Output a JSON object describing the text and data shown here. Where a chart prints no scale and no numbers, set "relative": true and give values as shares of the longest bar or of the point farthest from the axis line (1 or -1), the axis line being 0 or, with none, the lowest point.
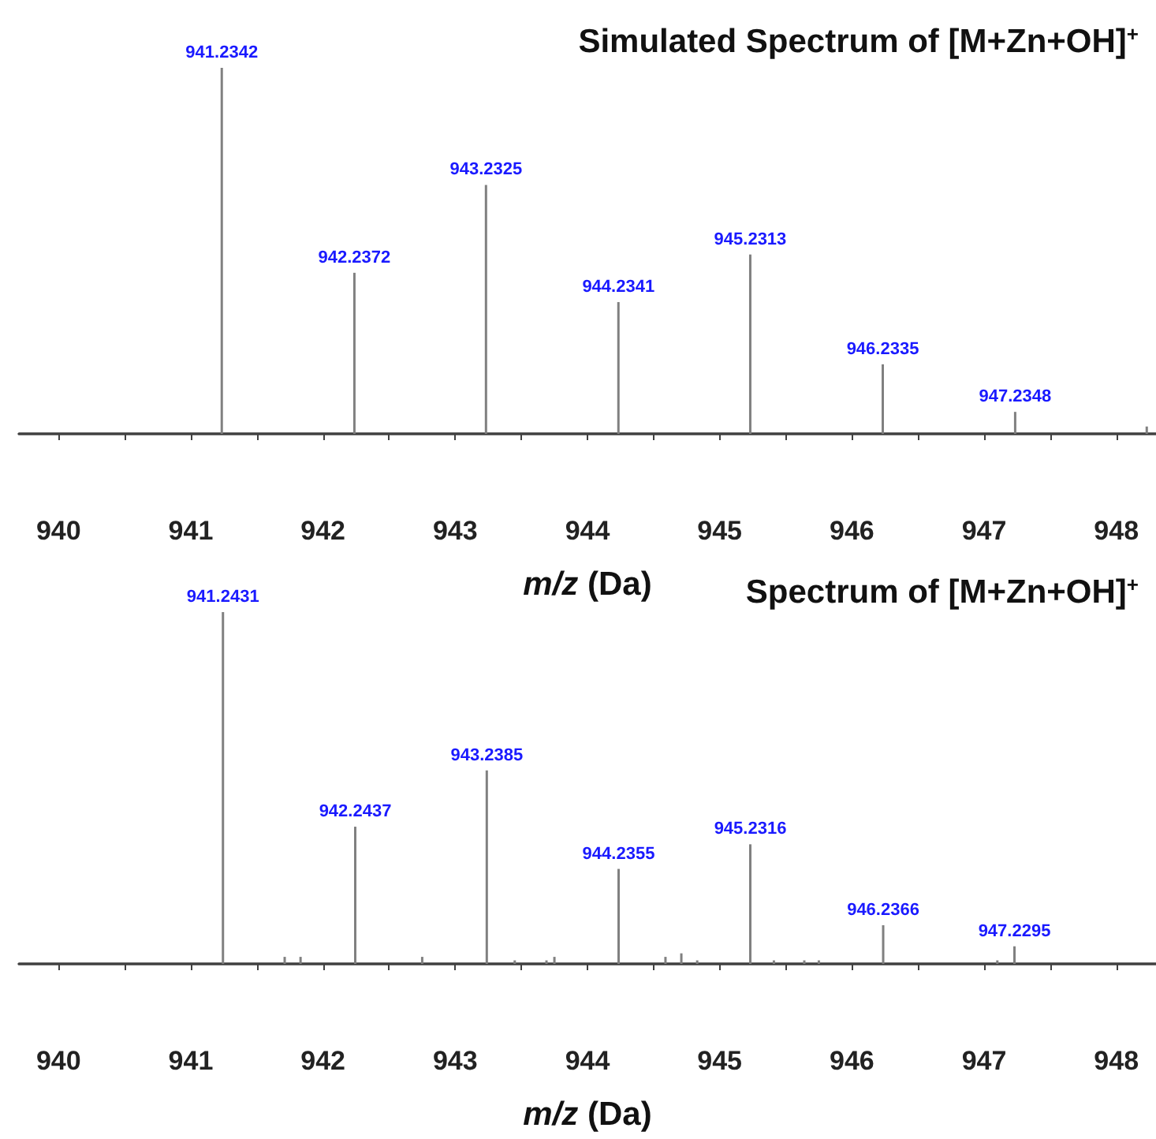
{
  "chart_data": [
    {
      "type": "bar",
      "title": "Simulated Spectrum of [M+Zn+OH]$^{+}$",
      "xlabel": "m/z (Da)",
      "relative": true,
      "x": [
        941.2342,
        942.2372,
        943.2325,
        944.2341,
        945.2313,
        946.2335,
        947.2348,
        948.23
      ],
      "values": [
        1,
        0.44,
        0.68,
        0.36,
        0.49,
        0.19,
        0.06,
        0.02
      ],
      "annotations": [
        {
          "text": "941.2342",
          "x": 941.2342,
          "y": 1
        },
        {
          "text": "942.2372",
          "x": 942.2372,
          "y": 0.44
        },
        {
          "text": "943.2325",
          "x": 943.2325,
          "y": 0.68
        },
        {
          "text": "944.2341",
          "x": 944.2341,
          "y": 0.36
        },
        {
          "text": "945.2313",
          "x": 945.2313,
          "y": 0.49
        },
        {
          "text": "946.2335",
          "x": 946.2335,
          "y": 0.19
        },
        {
          "text": "947.2348",
          "x": 947.2348,
          "y": 0.06
        }
      ],
      "color": "#808080",
      "xlim": [
        939.7,
        948.3
      ],
      "xticks": [
        940,
        {
          "value": 940.5,
          "label": null
        },
        941,
        {
          "value": 941.5,
          "label": null
        },
        942,
        {
          "value": 942.5,
          "label": null
        },
        943,
        {
          "value": 943.5,
          "label": null
        },
        944,
        {
          "value": 944.5,
          "label": null
        },
        945,
        {
          "value": 945.5,
          "label": null
        },
        946,
        {
          "value": 946.5,
          "label": null
        },
        947,
        {
          "value": 947.5,
          "label": null
        },
        948
      ]
    },
    {
      "type": "bar",
      "title": "Spectrum of [M+Zn+OH]$^{+}$",
      "xlabel": "m/z (Da)",
      "relative": true,
      "x": [
        941.2431,
        941.71,
        941.83,
        942.2437,
        942.75,
        943.2385,
        943.45,
        943.69,
        943.75,
        944.2355,
        944.59,
        944.71,
        944.83,
        945.2316,
        945.41,
        945.64,
        945.75,
        946.2366,
        947.1,
        947.2295
      ],
      "values": [
        1,
        0.02,
        0.02,
        0.39,
        0.02,
        0.55,
        0.01,
        0.01,
        0.02,
        0.27,
        0.02,
        0.03,
        0.01,
        0.34,
        0.01,
        0.01,
        0.01,
        0.11,
        0.01,
        0.05
      ],
      "annotations": [
        {
          "text": "941.2431",
          "x": 941.2431,
          "y": 1
        },
        {
          "text": "942.2437",
          "x": 942.2437,
          "y": 0.39
        },
        {
          "text": "943.2385",
          "x": 943.2385,
          "y": 0.55
        },
        {
          "text": "944.2355",
          "x": 944.2355,
          "y": 0.27
        },
        {
          "text": "945.2316",
          "x": 945.2316,
          "y": 0.34
        },
        {
          "text": "946.2366",
          "x": 946.2366,
          "y": 0.11
        },
        {
          "text": "947.2295",
          "x": 947.2295,
          "y": 0.05
        }
      ],
      "color": "#808080",
      "xlim": [
        939.7,
        948.3
      ],
      "xticks": [
        940,
        {
          "value": 940.5,
          "label": null
        },
        941,
        {
          "value": 941.5,
          "label": null
        },
        942,
        {
          "value": 942.5,
          "label": null
        },
        943,
        {
          "value": 943.5,
          "label": null
        },
        944,
        {
          "value": 944.5,
          "label": null
        },
        945,
        {
          "value": 945.5,
          "label": null
        },
        946,
        {
          "value": 946.5,
          "label": null
        },
        947,
        {
          "value": 947.5,
          "label": null
        },
        948
      ]
    }
  ]
}
